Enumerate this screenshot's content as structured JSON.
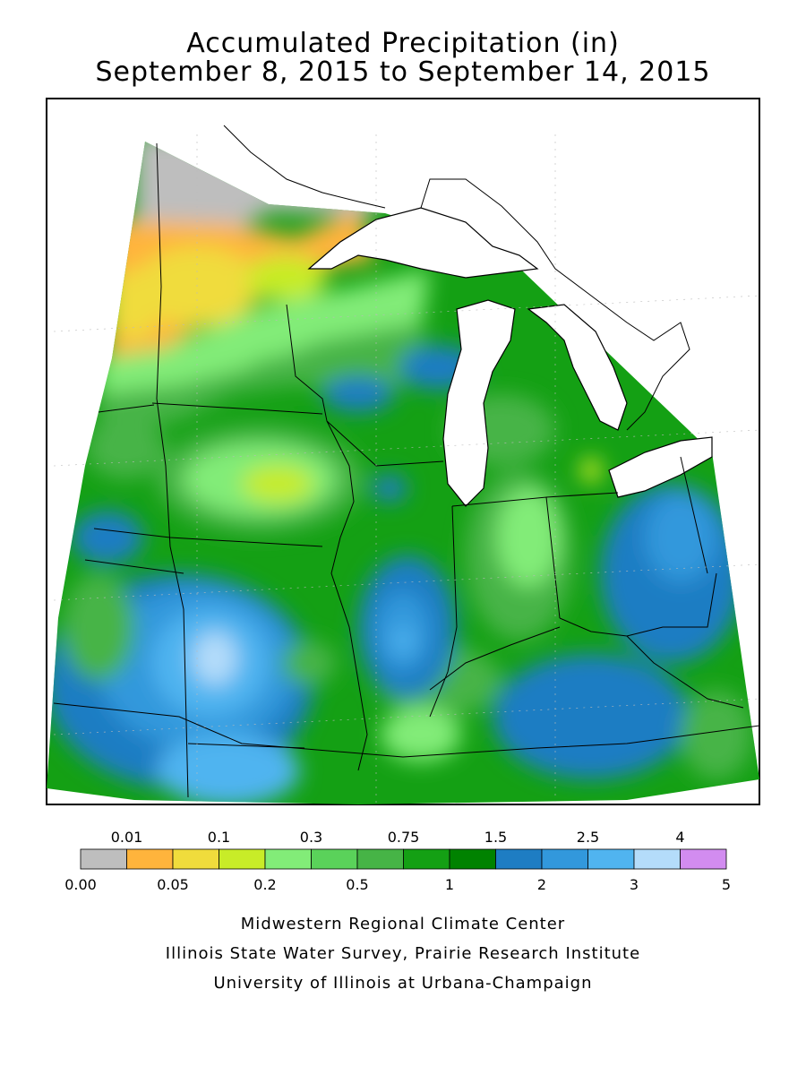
{
  "title": "Accumulated Precipitation (in)",
  "subtitle": "September 8, 2015 to September 14, 2015",
  "legend": {
    "top_labels": [
      "0.01",
      "0.1",
      "0.3",
      "0.75",
      "1.5",
      "2.5",
      "4"
    ],
    "bottom_labels": [
      "0.00",
      "0.05",
      "0.2",
      "0.5",
      "1",
      "2",
      "3",
      "5"
    ],
    "colors": [
      "#bebebe",
      "#ffb43c",
      "#f0dc3c",
      "#c8ec28",
      "#82ec78",
      "#5ad25a",
      "#46b446",
      "#14a014",
      "#008200",
      "#1e7dc3",
      "#3298dc",
      "#50b4f0",
      "#b4dcfa",
      "#d28cf0"
    ]
  },
  "credits": {
    "line1": "Midwestern Regional Climate Center",
    "line2": "Illinois State Water Survey, Prairie Research Institute",
    "line3": "University of Illinois at Urbana-Champaign"
  }
}
